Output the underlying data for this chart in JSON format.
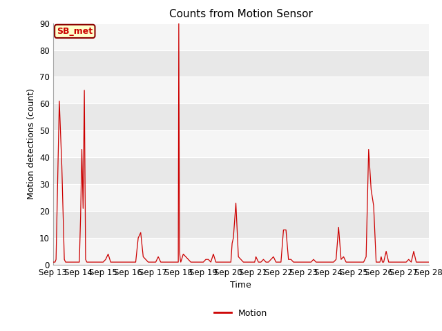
{
  "title": "Counts from Motion Sensor",
  "xlabel": "Time",
  "ylabel": "Motion detections (count)",
  "legend_label": "Motion",
  "line_color": "#cc0000",
  "ylim": [
    0,
    90
  ],
  "annotation_text": "SB_met",
  "annotation_bg": "#ffffcc",
  "annotation_border": "#8b0000",
  "annotation_text_color": "#cc0000",
  "x_tick_labels": [
    "Sep 13",
    "Sep 14",
    "Sep 15",
    "Sep 16",
    "Sep 17",
    "Sep 18",
    "Sep 19",
    "Sep 20",
    "Sep 21",
    "Sep 22",
    "Sep 23",
    "Sep 24",
    "Sep 25",
    "Sep 26",
    "Sep 27",
    "Sep 28"
  ],
  "fig_bg": "#ffffff",
  "plot_bg_light": "#f5f5f5",
  "plot_bg_dark": "#e8e8e8",
  "yticks": [
    0,
    10,
    20,
    30,
    40,
    50,
    60,
    70,
    80,
    90
  ],
  "data_x": [
    0,
    0.08,
    0.12,
    0.18,
    0.25,
    0.35,
    0.45,
    0.5,
    0.55,
    0.6,
    0.7,
    0.8,
    0.9,
    1.0,
    1.05,
    1.1,
    1.15,
    1.2,
    1.25,
    1.3,
    1.35,
    1.4,
    1.45,
    1.5,
    1.55,
    1.6,
    1.7,
    1.8,
    1.9,
    2.0,
    2.1,
    2.2,
    2.3,
    2.4,
    2.5,
    2.6,
    2.7,
    2.8,
    2.9,
    3.0,
    3.1,
    3.2,
    3.3,
    3.4,
    3.5,
    3.6,
    3.7,
    3.8,
    3.9,
    4.0,
    4.1,
    4.2,
    4.3,
    4.4,
    4.5,
    4.6,
    4.7,
    4.8,
    4.9,
    5.0,
    5.02,
    5.05,
    5.08,
    5.1,
    5.2,
    5.3,
    5.4,
    5.5,
    5.6,
    5.7,
    5.8,
    5.9,
    6.0,
    6.1,
    6.2,
    6.3,
    6.4,
    6.5,
    6.6,
    6.7,
    6.8,
    6.9,
    7.0,
    7.1,
    7.15,
    7.2,
    7.3,
    7.4,
    7.5,
    7.6,
    7.7,
    7.8,
    7.9,
    8.0,
    8.05,
    8.1,
    8.2,
    8.3,
    8.4,
    8.5,
    8.6,
    8.7,
    8.8,
    8.9,
    9.0,
    9.1,
    9.2,
    9.3,
    9.4,
    9.5,
    9.6,
    9.7,
    9.8,
    9.9,
    10.0,
    10.1,
    10.2,
    10.3,
    10.4,
    10.5,
    10.6,
    10.7,
    10.8,
    10.9,
    11.0,
    11.1,
    11.2,
    11.3,
    11.4,
    11.5,
    11.6,
    11.7,
    11.8,
    11.9,
    12.0,
    12.1,
    12.2,
    12.3,
    12.4,
    12.5,
    12.6,
    12.7,
    12.8,
    12.9,
    13.0,
    13.05,
    13.1,
    13.15,
    13.2,
    13.3,
    13.4,
    13.45,
    13.5,
    13.55,
    13.6,
    13.7,
    13.8,
    13.9,
    14.0,
    14.1,
    14.2,
    14.3,
    14.4,
    14.5,
    14.6,
    14.7,
    14.8,
    14.9,
    15.0
  ],
  "data_y": [
    1,
    1,
    2,
    29,
    61,
    37,
    2,
    1,
    1,
    1,
    1,
    1,
    1,
    1,
    1,
    18,
    43,
    21,
    65,
    2,
    1,
    1,
    1,
    1,
    1,
    1,
    1,
    1,
    1,
    1,
    2,
    4,
    1,
    1,
    1,
    1,
    1,
    1,
    1,
    1,
    1,
    1,
    1,
    10,
    12,
    3,
    2,
    1,
    1,
    1,
    1,
    3,
    1,
    1,
    1,
    1,
    1,
    1,
    1,
    1,
    90,
    5,
    2,
    1,
    4,
    3,
    2,
    1,
    1,
    1,
    1,
    1,
    1,
    2,
    2,
    1,
    4,
    1,
    1,
    1,
    1,
    1,
    1,
    1,
    8,
    10,
    23,
    3,
    2,
    1,
    1,
    1,
    1,
    1,
    1,
    3,
    1,
    1,
    2,
    1,
    1,
    2,
    3,
    1,
    1,
    1,
    13,
    13,
    2,
    2,
    1,
    1,
    1,
    1,
    1,
    1,
    1,
    1,
    2,
    1,
    1,
    1,
    1,
    1,
    1,
    1,
    1,
    2,
    14,
    2,
    3,
    1,
    1,
    1,
    1,
    1,
    1,
    1,
    1,
    3,
    43,
    28,
    22,
    1,
    1,
    1,
    3,
    1,
    1,
    5,
    1,
    1,
    1,
    1,
    1,
    1,
    1,
    1,
    1,
    1,
    2,
    1,
    5,
    1,
    1,
    1,
    1,
    1,
    1
  ]
}
